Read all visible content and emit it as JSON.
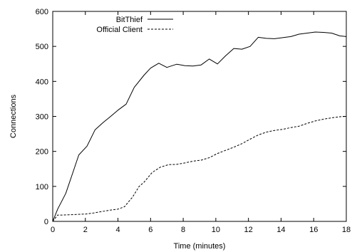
{
  "chart_data": {
    "type": "line",
    "title": "",
    "xlabel": "Time (minutes)",
    "ylabel": "Connections",
    "xlim": [
      0,
      18
    ],
    "ylim": [
      0,
      600
    ],
    "xticks": [
      0,
      2,
      4,
      6,
      8,
      10,
      12,
      14,
      16,
      18
    ],
    "yticks": [
      0,
      100,
      200,
      300,
      400,
      500,
      600
    ],
    "grid": false,
    "legend_position": "top-left",
    "series": [
      {
        "name": "BitThief",
        "style": "solid",
        "color": "#000000",
        "x": [
          0,
          0.3,
          0.8,
          1.2,
          1.6,
          2.1,
          2.6,
          3.1,
          3.5,
          4.0,
          4.5,
          5.0,
          5.6,
          6.0,
          6.5,
          7.0,
          7.6,
          8.1,
          8.6,
          9.1,
          9.6,
          10.1,
          10.6,
          11.1,
          11.6,
          12.1,
          12.6,
          13.1,
          13.6,
          14.1,
          14.6,
          15.1,
          15.6,
          16.1,
          16.6,
          17.1,
          17.6,
          18.0
        ],
        "y": [
          0,
          35,
          80,
          135,
          190,
          215,
          262,
          283,
          298,
          318,
          335,
          383,
          418,
          438,
          452,
          440,
          449,
          445,
          444,
          447,
          464,
          450,
          473,
          494,
          492,
          500,
          526,
          523,
          522,
          525,
          528,
          535,
          538,
          541,
          540,
          538,
          530,
          528
        ]
      },
      {
        "name": "Official Client",
        "style": "dashed",
        "color": "#000000",
        "x": [
          0,
          0.3,
          0.6,
          1.0,
          1.5,
          2.0,
          2.5,
          3.0,
          3.5,
          4.0,
          4.4,
          4.9,
          5.3,
          5.6,
          6.1,
          6.6,
          7.1,
          7.6,
          8.1,
          8.6,
          9.1,
          9.6,
          10.1,
          10.6,
          11.1,
          11.6,
          12.1,
          12.6,
          13.1,
          13.6,
          14.1,
          14.6,
          15.1,
          15.6,
          16.1,
          16.6,
          17.1,
          17.6,
          18.0
        ],
        "y": [
          0,
          18,
          18,
          19,
          20,
          21,
          24,
          28,
          32,
          35,
          42,
          70,
          100,
          112,
          140,
          155,
          162,
          163,
          167,
          172,
          175,
          182,
          194,
          203,
          212,
          222,
          235,
          247,
          255,
          260,
          263,
          268,
          272,
          280,
          287,
          292,
          296,
          299,
          300
        ]
      }
    ]
  }
}
